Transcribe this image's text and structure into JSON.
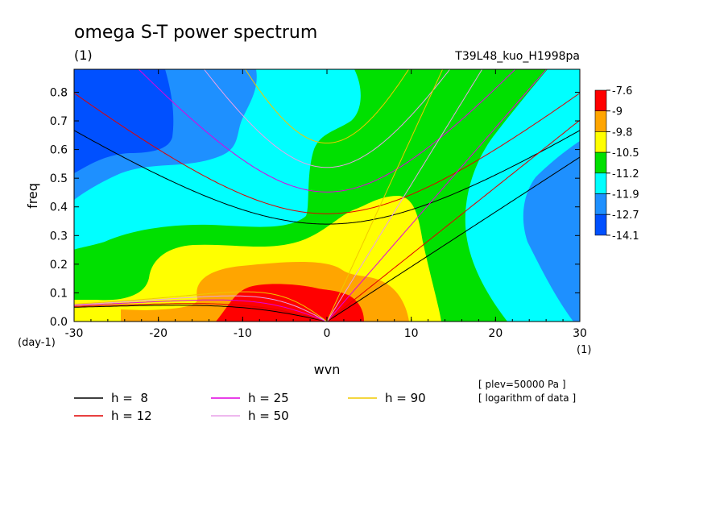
{
  "title": "omega S-T power spectrum",
  "subtitle_left": "(1)",
  "subtitle_right": "T39L48_kuo_H1998pa",
  "chart_data": {
    "type": "heatmap",
    "xlabel": "wvn",
    "ylabel": "freq",
    "x_unit": "(1)",
    "y_unit": "(day-1)",
    "xlim": [
      -30,
      30
    ],
    "ylim": [
      0,
      0.88
    ],
    "xticks": [
      -30,
      -20,
      -10,
      0,
      10,
      20,
      30
    ],
    "yticks": [
      0.0,
      0.1,
      0.2,
      0.3,
      0.4,
      0.5,
      0.6,
      0.7,
      0.8
    ],
    "ytick_labels": [
      "0.0",
      "0.1",
      "0.2",
      "0.3",
      "0.4",
      "0.5",
      "0.6",
      "0.7",
      "0.8"
    ],
    "colorbar": {
      "levels": [
        "-7.6",
        "-9",
        "-9.8",
        "-10.5",
        "-11.2",
        "-11.9",
        "-12.7",
        "-14.1"
      ],
      "colors": [
        "#ff0000",
        "#ffa500",
        "#ffff00",
        "#00e000",
        "#00ffff",
        "#1e90ff",
        "#0050ff"
      ]
    },
    "series": [
      {
        "name": "h =  8",
        "h": 8,
        "color": "#000000"
      },
      {
        "name": "h = 12",
        "h": 12,
        "color": "#e00000"
      },
      {
        "name": "h = 25",
        "h": 25,
        "color": "#e000e0"
      },
      {
        "name": "h = 50",
        "h": 50,
        "color": "#e8a0e8"
      },
      {
        "name": "h = 90",
        "h": 90,
        "color": "#f0c800"
      }
    ],
    "grid": false,
    "legend_position": "bottom"
  },
  "notes": [
    "[ plev=50000 Pa ]",
    "[ logarithm of data ]"
  ]
}
